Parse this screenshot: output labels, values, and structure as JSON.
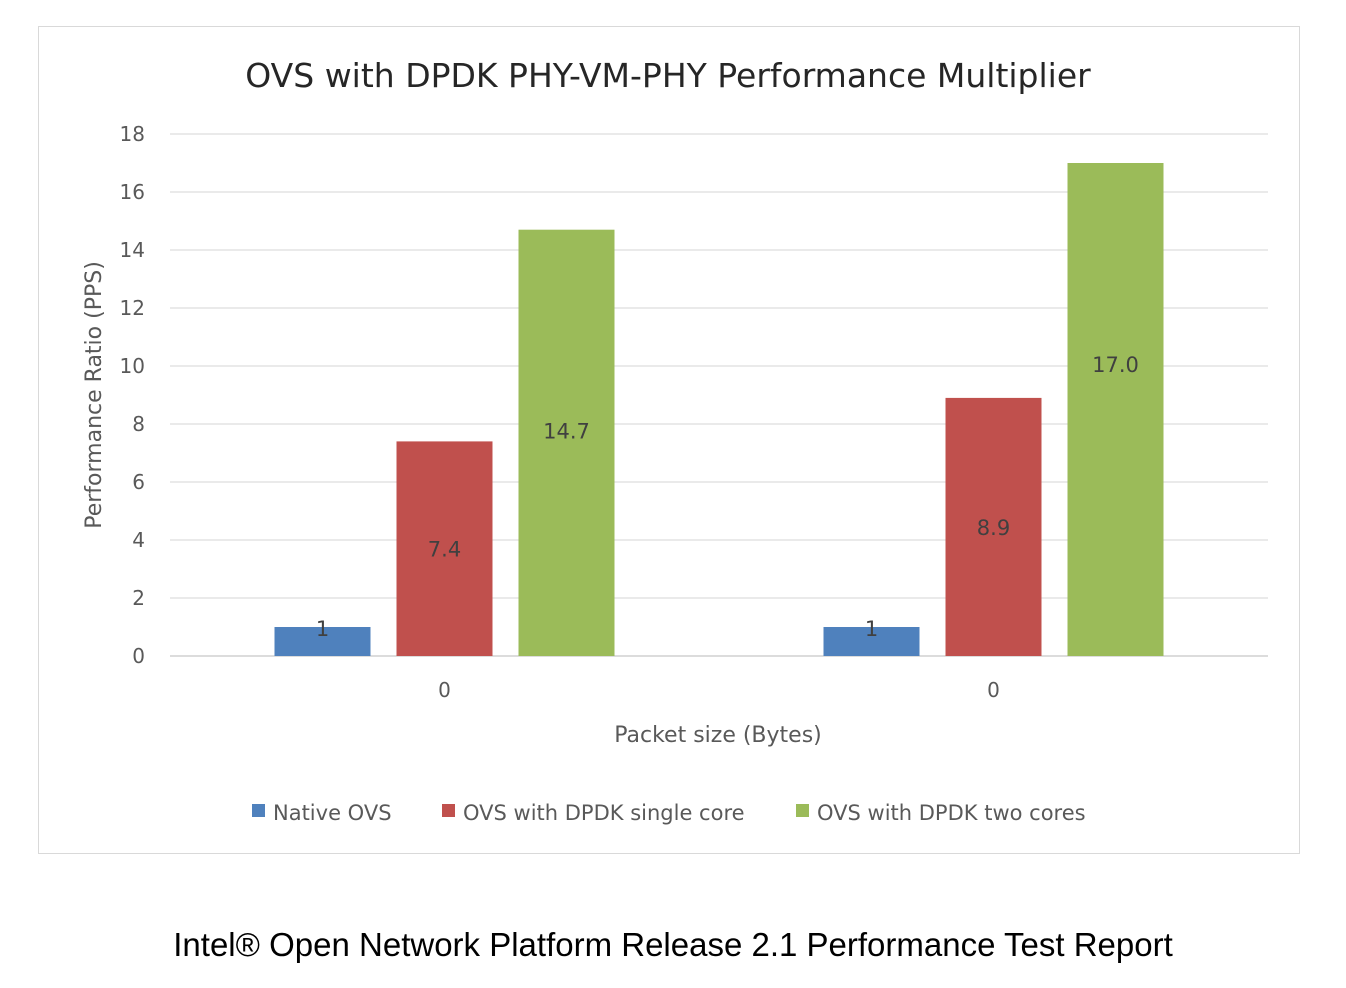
{
  "chart_data": {
    "type": "bar",
    "title": "OVS with DPDK PHY-VM-PHY Performance Multiplier",
    "xlabel": "Packet size (Bytes)",
    "ylabel": "Performance Ratio (PPS)",
    "categories": [
      "0",
      "0"
    ],
    "ylim": [
      0,
      18
    ],
    "yticks": [
      0,
      2,
      4,
      6,
      8,
      10,
      12,
      14,
      16,
      18
    ],
    "grid": true,
    "legend_position": "bottom",
    "series": [
      {
        "name": "Native OVS",
        "values": [
          1,
          1
        ],
        "labels": [
          "1",
          "1"
        ],
        "color": "#4f81bd"
      },
      {
        "name": "OVS with DPDK single core",
        "values": [
          7.4,
          8.9
        ],
        "labels": [
          "7.4",
          "8.9"
        ],
        "color": "#c0504d"
      },
      {
        "name": "OVS with DPDK two cores",
        "values": [
          14.7,
          17.0
        ],
        "labels": [
          "14.7",
          "17.0"
        ],
        "color": "#9bbb59"
      }
    ]
  },
  "caption": "Intel® Open Network Platform Release 2.1 Performance Test Report"
}
